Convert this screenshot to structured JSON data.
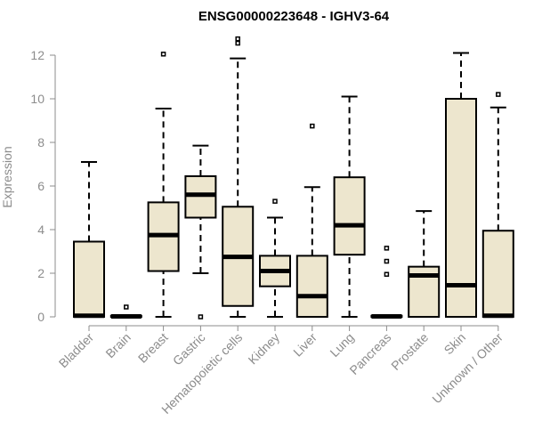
{
  "chart_data": {
    "type": "box",
    "title": "ENSG00000223648 - IGHV3-64",
    "xlabel": "",
    "ylabel": "Expression",
    "ylim": [
      0,
      12.5
    ],
    "yticks": [
      0,
      2,
      4,
      6,
      8,
      10,
      12
    ],
    "box_fill": "#ede6ce",
    "categories": [
      "Bladder",
      "Brain",
      "Breast",
      "Gastric",
      "Hematopoietic cells",
      "Kidney",
      "Liver",
      "Lung",
      "Pancreas",
      "Prostate",
      "Skin",
      "Unknown / Other"
    ],
    "boxes": [
      {
        "min": 0,
        "q1": 0,
        "median": 0.05,
        "q3": 3.45,
        "max": 7.1,
        "outliers": []
      },
      {
        "min": 0,
        "q1": 0,
        "median": 0.02,
        "q3": 0.05,
        "max": 0.05,
        "outliers": [
          0.45
        ]
      },
      {
        "min": 0,
        "q1": 2.1,
        "median": 3.75,
        "q3": 5.25,
        "max": 9.55,
        "outliers": [
          12.05
        ]
      },
      {
        "min": 2.0,
        "q1": 4.55,
        "median": 5.6,
        "q3": 6.45,
        "max": 7.85,
        "outliers": [
          0.0
        ]
      },
      {
        "min": 0,
        "q1": 0.5,
        "median": 2.75,
        "q3": 5.05,
        "max": 11.85,
        "outliers": [
          12.55,
          12.75
        ]
      },
      {
        "min": 0,
        "q1": 1.4,
        "median": 2.1,
        "q3": 2.8,
        "max": 4.55,
        "outliers": [
          5.3
        ]
      },
      {
        "min": 0,
        "q1": 0,
        "median": 0.95,
        "q3": 2.8,
        "max": 5.95,
        "outliers": [
          8.75
        ]
      },
      {
        "min": 0,
        "q1": 2.85,
        "median": 4.2,
        "q3": 6.4,
        "max": 10.1,
        "outliers": []
      },
      {
        "min": 0,
        "q1": 0,
        "median": 0.02,
        "q3": 0.05,
        "max": 0.05,
        "outliers": [
          1.95,
          2.55,
          3.15
        ]
      },
      {
        "min": 0,
        "q1": 0,
        "median": 1.9,
        "q3": 2.3,
        "max": 4.85,
        "outliers": []
      },
      {
        "min": 0,
        "q1": 0,
        "median": 1.45,
        "q3": 10.0,
        "max": 12.1,
        "outliers": []
      },
      {
        "min": 0,
        "q1": 0,
        "median": 0.05,
        "q3": 3.95,
        "max": 9.6,
        "outliers": [
          10.2
        ]
      }
    ]
  }
}
